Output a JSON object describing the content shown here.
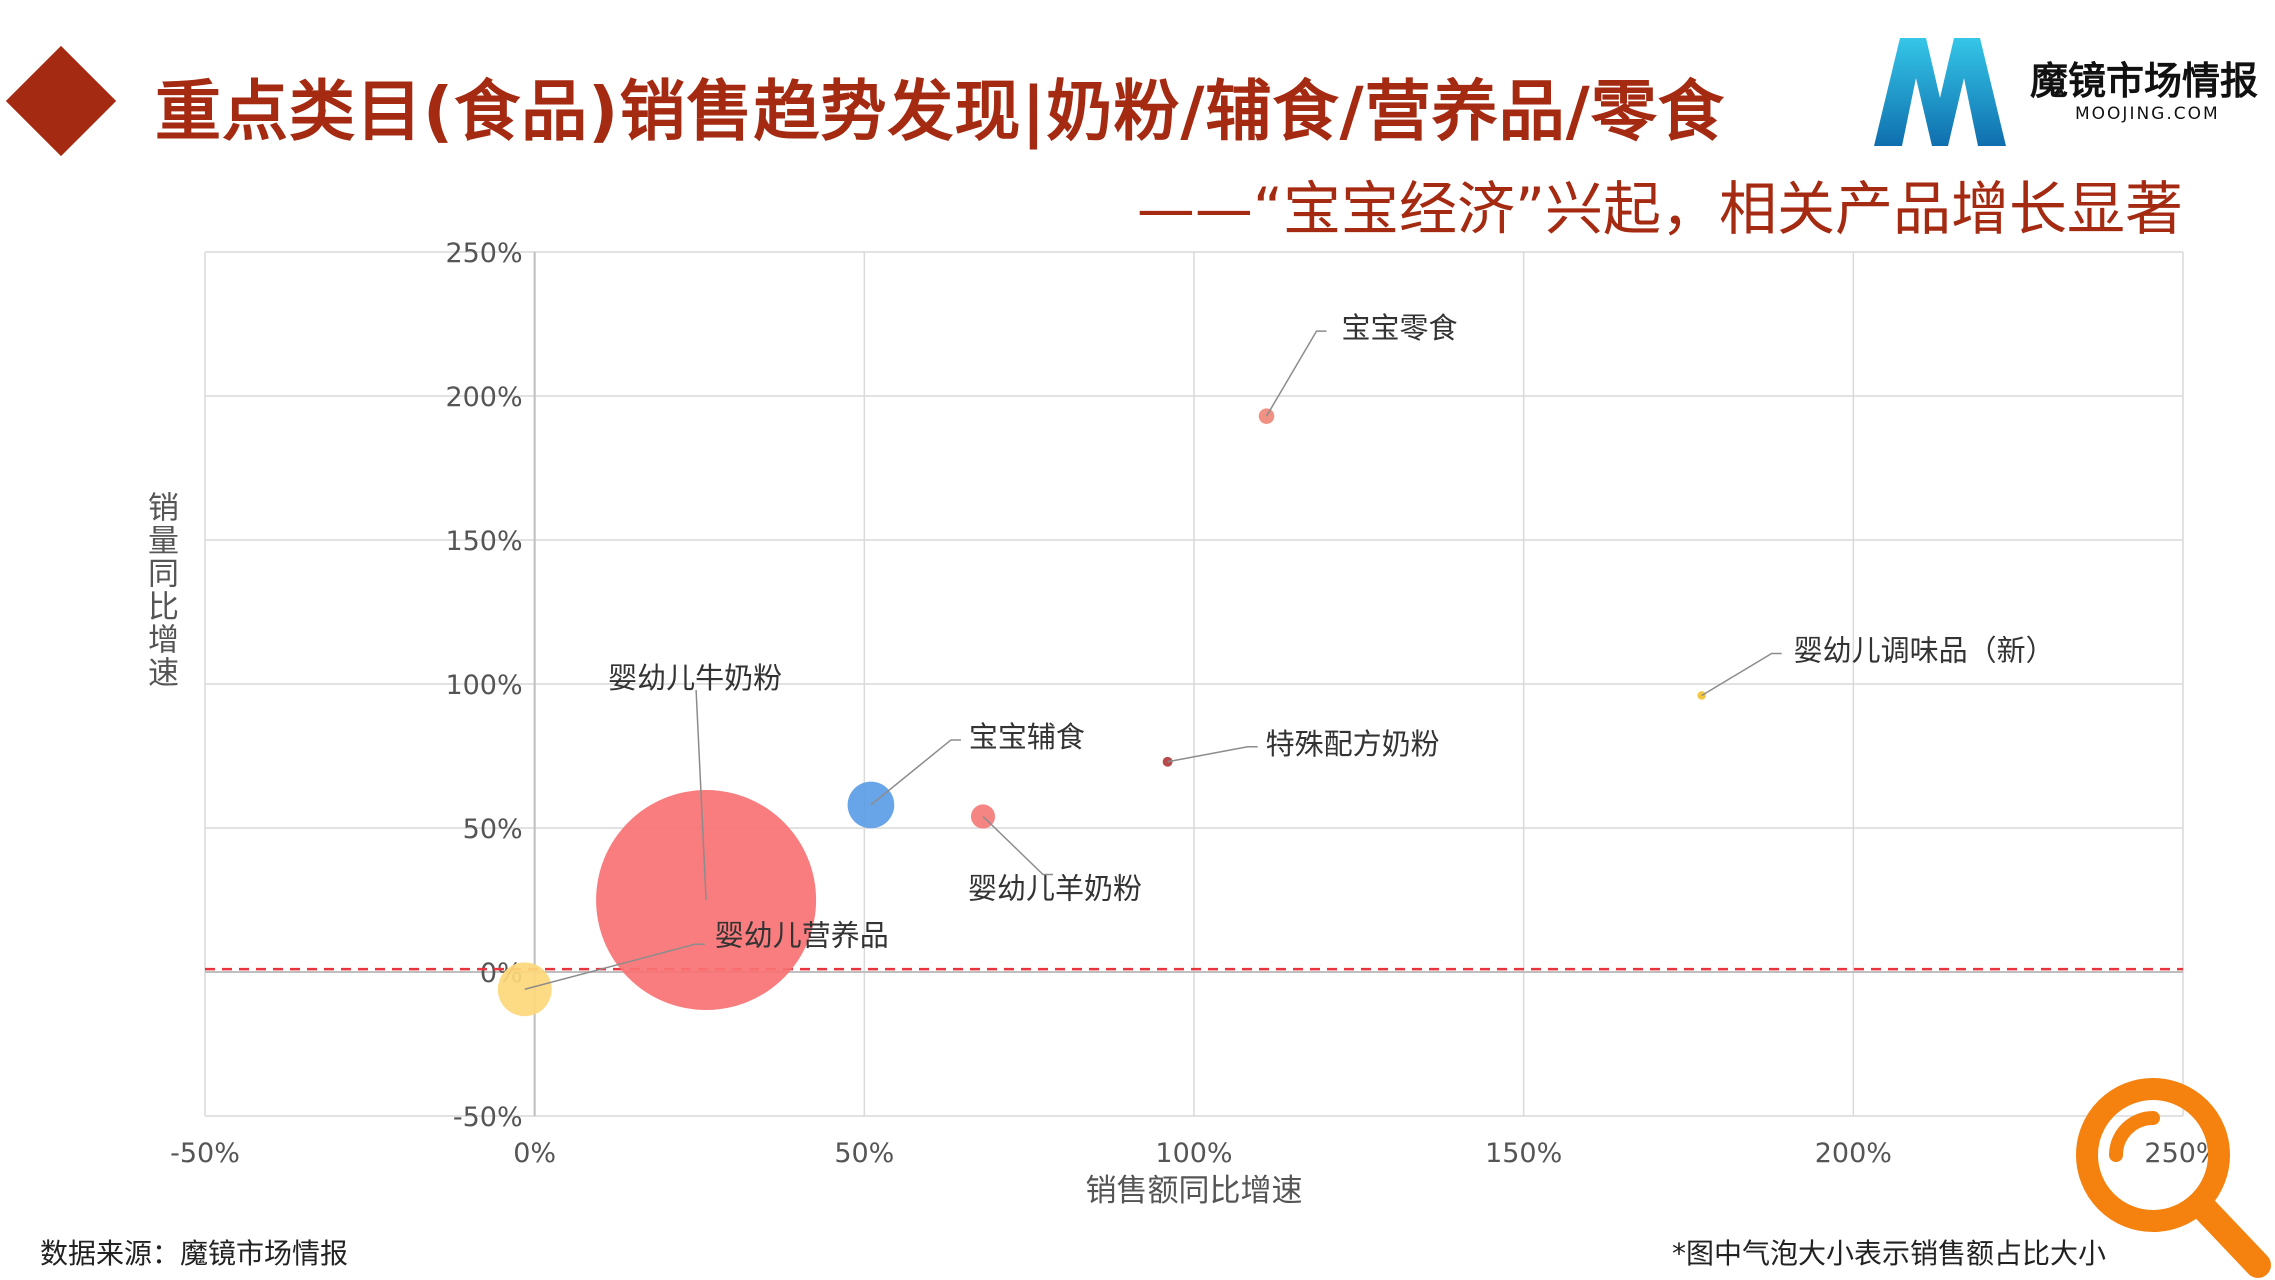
{
  "header": {
    "title": "重点类目(食品)销售趋势发现|奶粉/辅食/营养品/零食",
    "subtitle": "——“宝宝经济”兴起，相关产品增长显著"
  },
  "brand": {
    "name": "魔镜市场情报",
    "url_text": "MOOJING.COM",
    "logo_letter": "M",
    "logo_color": "#1a9fd4"
  },
  "footer": {
    "source": "数据来源：魔镜市场情报",
    "note": "*图中气泡大小表示销售额占比大小"
  },
  "decor": {
    "search_icon_color": "#f5820f"
  },
  "chart_data": {
    "type": "scatter",
    "variant": "bubble",
    "title": "",
    "xlabel": "销售额同比增速",
    "ylabel": "销量同比增速",
    "xlim": [
      -50,
      250
    ],
    "ylim": [
      -50,
      250
    ],
    "xticks": [
      -50,
      0,
      50,
      100,
      150,
      200,
      250
    ],
    "yticks": [
      -50,
      0,
      50,
      100,
      150,
      200,
      250
    ],
    "tick_suffix": "%",
    "grid": true,
    "reference_line": {
      "axis": "y",
      "value": 1,
      "style": "dashed",
      "color": "#e8343c"
    },
    "points": [
      {
        "label": "婴幼儿牛奶粉",
        "x": 26,
        "y": 25,
        "size": 100,
        "color": "#f87273"
      },
      {
        "label": "婴幼儿营养品",
        "x": -1.5,
        "y": -6,
        "size": 6,
        "color": "#fdd77a"
      },
      {
        "label": "宝宝辅食",
        "x": 51,
        "y": 58,
        "size": 4.5,
        "color": "#5b9ce6"
      },
      {
        "label": "婴幼儿羊奶粉",
        "x": 68,
        "y": 54,
        "size": 1.2,
        "color": "#f47b78"
      },
      {
        "label": "特殊配方奶粉",
        "x": 96,
        "y": 73,
        "size": 0.2,
        "color": "#b03a3a"
      },
      {
        "label": "宝宝零食",
        "x": 111,
        "y": 193,
        "size": 0.5,
        "color": "#f0887a"
      },
      {
        "label": "婴幼儿调味品（新）",
        "x": 177,
        "y": 96,
        "size": 0.15,
        "color": "#f2c230"
      }
    ]
  }
}
